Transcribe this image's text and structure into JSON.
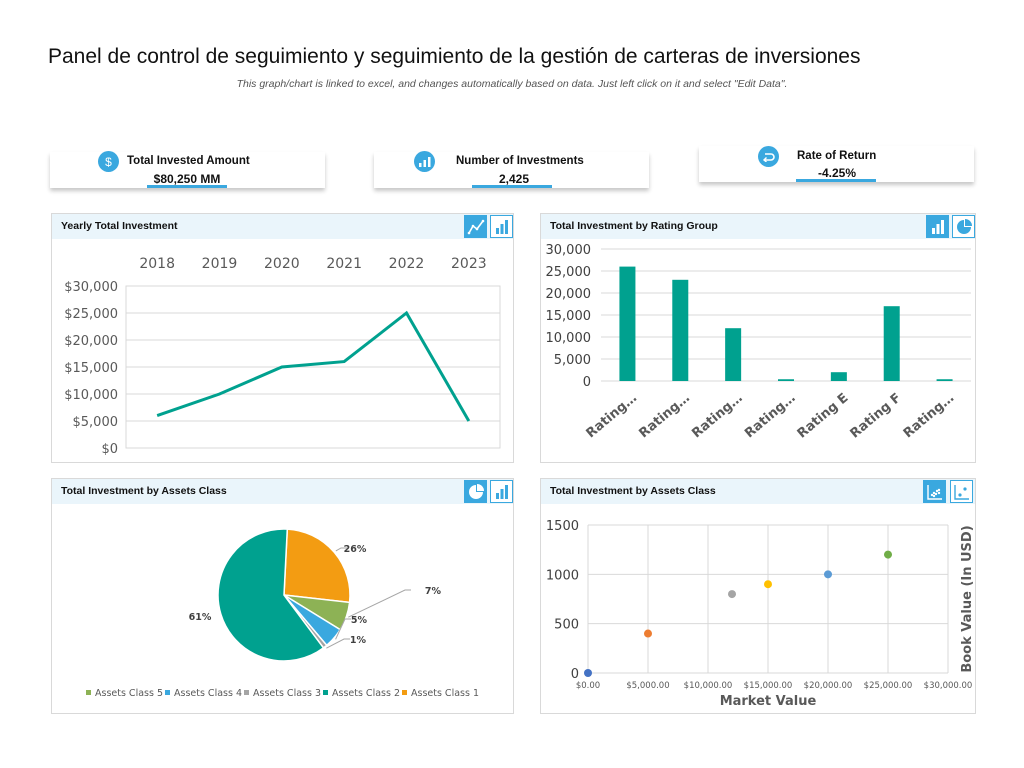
{
  "header": {
    "title": "Panel de control de seguimiento y seguimiento de la gestión de carteras de inversiones",
    "subtitle": "This graph/chart is linked to excel, and changes automatically based on data. Just left click on it and select \"Edit Data\"."
  },
  "kpis": [
    {
      "label": "Total Invested Amount",
      "value": "$80,250 MM",
      "icon": "dollar-icon"
    },
    {
      "label": "Number of Investments",
      "value": "2,425",
      "icon": "bar-chart-icon"
    },
    {
      "label": "Rate of Return",
      "value": "-4.25%",
      "icon": "return-arrow-icon"
    }
  ],
  "colors": {
    "accent": "#3AA8DF",
    "teal": "#00A18F",
    "panel_header": "#EAF5FB"
  },
  "panels": {
    "yearly": {
      "title": "Yearly Total Investment",
      "buttons": [
        "line-chart-icon",
        "bar-chart-icon"
      ]
    },
    "rating": {
      "title": "Total Investment  by Rating Group",
      "buttons": [
        "bar-chart-icon",
        "pie-chart-icon"
      ]
    },
    "assets_pie": {
      "title": "Total Investment by Assets Class",
      "buttons": [
        "pie-chart-icon",
        "bar-chart-icon"
      ]
    },
    "assets_scatter": {
      "title": "Total Investment by Assets Class",
      "buttons": [
        "scatter-chart-icon",
        "scatter-chart-alt-icon"
      ]
    }
  },
  "chart_data": [
    {
      "id": "yearly",
      "type": "line",
      "title": "Yearly Total Investment",
      "categories": [
        "2018",
        "2019",
        "2020",
        "2021",
        "2022",
        "2023"
      ],
      "values": [
        6000,
        10000,
        15000,
        16000,
        25000,
        5000
      ],
      "ylim": [
        0,
        30000
      ],
      "yticks": [
        "$0",
        "$5,000",
        "$10,000",
        "$15,000",
        "$20,000",
        "$25,000",
        "$30,000"
      ],
      "xaxis_position": "top",
      "grid": true,
      "color": "#00A18F"
    },
    {
      "id": "rating",
      "type": "bar",
      "title": "Total Investment  by Rating Group",
      "categories": [
        "Rating…",
        "Rating…",
        "Rating…",
        "Rating…",
        "Rating  E",
        "Rating  F",
        "Rating…"
      ],
      "values": [
        26000,
        23000,
        12000,
        400,
        2000,
        17000,
        400
      ],
      "ylim": [
        0,
        30000
      ],
      "yticks": [
        "0",
        "5,000",
        "10,000",
        "15,000",
        "20,000",
        "25,000",
        "30,000"
      ],
      "grid": true,
      "color": "#00A18F"
    },
    {
      "id": "assets_pie",
      "type": "pie",
      "title": "Total Investment by Assets Class",
      "slices": [
        {
          "name": "Assets Class 1",
          "value": 26,
          "label": "26%",
          "color": "#F39C12"
        },
        {
          "name": "Assets Class 5",
          "value": 7,
          "label": "7%",
          "color": "#8DB255"
        },
        {
          "name": "Assets Class 4",
          "value": 5,
          "label": "5%",
          "color": "#3AA8DF"
        },
        {
          "name": "Assets Class 3",
          "value": 1,
          "label": "1%",
          "color": "#A5A5A5"
        },
        {
          "name": "Assets Class 2",
          "value": 61,
          "label": "61%",
          "color": "#00A18F"
        }
      ],
      "legend": [
        "Assets Class 5",
        "Assets Class 4",
        "Assets Class 3",
        "Assets Class 2",
        "Assets Class 1"
      ],
      "legend_position": "bottom"
    },
    {
      "id": "assets_scatter",
      "type": "scatter",
      "title": "Total Investment by Assets Class",
      "points": [
        {
          "x": 0,
          "y": 0,
          "color": "#4472C4"
        },
        {
          "x": 5000,
          "y": 400,
          "color": "#ED7D31"
        },
        {
          "x": 12000,
          "y": 800,
          "color": "#A5A5A5"
        },
        {
          "x": 15000,
          "y": 900,
          "color": "#FFC000"
        },
        {
          "x": 20000,
          "y": 1000,
          "color": "#5B9BD5"
        },
        {
          "x": 25000,
          "y": 1200,
          "color": "#70AD47"
        }
      ],
      "xlim": [
        0,
        30000
      ],
      "ylim": [
        0,
        1500
      ],
      "xticks": [
        "$0.00",
        "$5,000.00",
        "$10,000.00",
        "$15,000.00",
        "$20,000.00",
        "$25,000.00",
        "$30,000.00"
      ],
      "yticks": [
        "0",
        "500",
        "1000",
        "1500"
      ],
      "xlabel": "Market Value",
      "ylabel": "Book Value (In USD)",
      "ylabel_position": "right",
      "grid": true
    }
  ]
}
